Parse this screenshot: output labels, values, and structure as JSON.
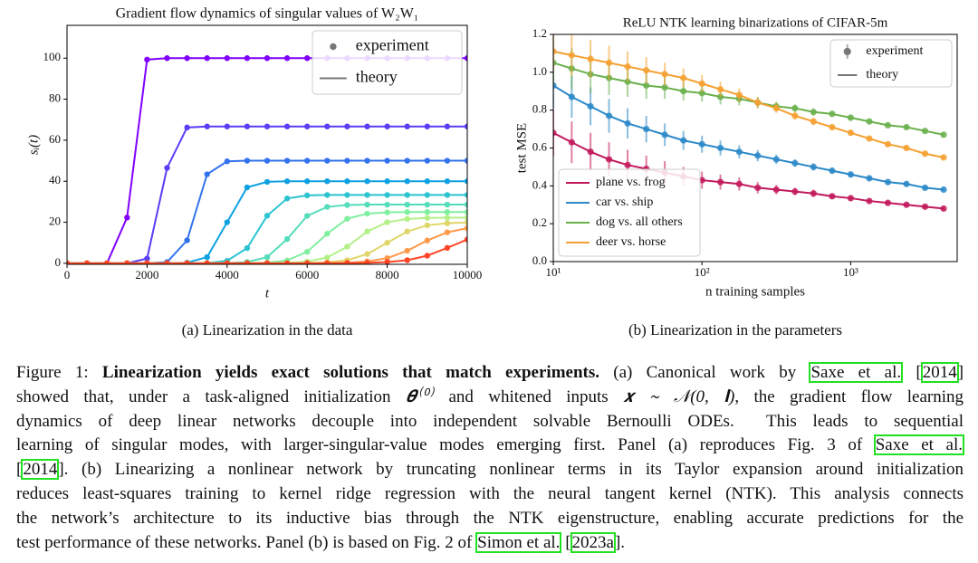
{
  "chart_data": [
    {
      "type": "line",
      "title": "Gradient flow dynamics of singular values of W₂W₁",
      "xlabel": "t",
      "ylabel": "sᵢ(t)",
      "xlim": [
        0,
        10000
      ],
      "ylim": [
        -0.5,
        116
      ],
      "xticks": [
        0,
        2000,
        4000,
        6000,
        8000,
        10000
      ],
      "yticks": [
        0,
        20,
        40,
        60,
        80,
        100
      ],
      "grid": false,
      "markers": true,
      "legend": {
        "loc": "upper right",
        "entries": [
          "experiment",
          "theory"
        ]
      },
      "x": [
        0,
        500,
        1000,
        1500,
        2000,
        2500,
        3000,
        3500,
        4000,
        4500,
        5000,
        5500,
        6000,
        6500,
        7000,
        7500,
        8000,
        8500,
        9000,
        9500,
        10000
      ],
      "series": [
        {
          "color": "#8000ff",
          "values": [
            0,
            0,
            0.1,
            22.3,
            99.3,
            100,
            100,
            100,
            100,
            100,
            100,
            100,
            100,
            100,
            100,
            100,
            100,
            100,
            100,
            100,
            100
          ]
        },
        {
          "color": "#5a3df7",
          "values": [
            0,
            0,
            0,
            0,
            2.3,
            46.5,
            66.2,
            66.7,
            66.7,
            66.7,
            66.7,
            66.7,
            66.7,
            66.7,
            66.7,
            66.7,
            66.7,
            66.7,
            66.7,
            66.7,
            66.7
          ]
        },
        {
          "color": "#3372ee",
          "values": [
            0,
            0,
            0,
            0,
            0,
            0.6,
            11.2,
            43.4,
            49.7,
            50,
            50,
            50,
            50,
            50,
            50,
            50,
            50,
            50,
            50,
            50,
            50
          ]
        },
        {
          "color": "#0ea1e2",
          "values": [
            0,
            0,
            0,
            0,
            0,
            0,
            0.3,
            3.0,
            20,
            37,
            39.7,
            40,
            40,
            40,
            40,
            40,
            40,
            40,
            40,
            40,
            40
          ]
        },
        {
          "color": "#2bc4d0",
          "values": [
            0,
            0,
            0,
            0,
            0,
            0,
            0,
            0.1,
            1.2,
            7.4,
            23.2,
            31.6,
            33.1,
            33.3,
            33.3,
            33.3,
            33.3,
            33.3,
            33.3,
            33.3,
            33.3
          ]
        },
        {
          "color": "#55ddba",
          "values": [
            0,
            0,
            0,
            0,
            0,
            0,
            0,
            0,
            0.1,
            0.6,
            3.0,
            11.8,
            23.1,
            27.5,
            28.4,
            28.6,
            28.6,
            28.6,
            28.6,
            28.6,
            28.6
          ]
        },
        {
          "color": "#80f0a0",
          "values": [
            0,
            0,
            0,
            0,
            0,
            0,
            0,
            0,
            0,
            0.1,
            0.3,
            1.4,
            5.6,
            14.4,
            21.7,
            24.2,
            24.8,
            25,
            25,
            25,
            25
          ]
        },
        {
          "color": "#b4f088",
          "values": [
            0,
            0,
            0,
            0,
            0,
            0,
            0,
            0,
            0,
            0,
            0,
            0.2,
            0.8,
            2.8,
            8.1,
            15.5,
            20.0,
            21.6,
            22.1,
            22.2,
            22.2
          ]
        },
        {
          "color": "#e0d66a",
          "values": [
            0,
            0,
            0,
            0,
            0,
            0,
            0,
            0,
            0,
            0,
            0,
            0,
            0.1,
            0.5,
            1.5,
            4.5,
            10,
            15.5,
            18.5,
            19.5,
            19.9
          ]
        },
        {
          "color": "#ff9a4a",
          "values": [
            0,
            0,
            0,
            0,
            0,
            0,
            0,
            0,
            0,
            0,
            0,
            0,
            0,
            0.1,
            0.3,
            0.9,
            2.5,
            6.1,
            11.1,
            15.1,
            17.1
          ]
        },
        {
          "color": "#ff4526",
          "values": [
            0,
            0,
            0,
            0,
            0,
            0,
            0,
            0,
            0,
            0,
            0,
            0,
            0,
            0,
            0.1,
            0.2,
            0.6,
            1.5,
            3.7,
            7.5,
            11.6
          ]
        }
      ]
    },
    {
      "type": "errorbar",
      "title": "ReLU NTK learning binarizations of CIFAR-5m",
      "xlabel": "n training samples",
      "ylabel": "test MSE",
      "xscale": "log",
      "xlim": [
        10,
        5200
      ],
      "ylim": [
        0,
        1.2
      ],
      "xticks": [
        {
          "value": 10,
          "label": "10¹"
        },
        {
          "value": 100,
          "label": "10²"
        },
        {
          "value": 1000,
          "label": "10³"
        }
      ],
      "yticks": [
        {
          "value": 0,
          "label": "0.0"
        },
        0.2,
        0.4,
        0.6,
        0.8,
        {
          "value": 1,
          "label": "1.0"
        },
        1.2
      ],
      "grid": false,
      "legend": {
        "loc": "upper right",
        "entries": [
          "experiment",
          "theory"
        ]
      },
      "series_legend": "lower left",
      "x": [
        10,
        13.3,
        17.8,
        23.7,
        31.6,
        42.2,
        56.2,
        75,
        100,
        133,
        178,
        237,
        316,
        422,
        562,
        750,
        1000,
        1334,
        1778,
        2371,
        3162,
        4217
      ],
      "series": [
        {
          "name": "plane vs. frog",
          "color": "#c2185b",
          "values": [
            0.68,
            0.63,
            0.58,
            0.54,
            0.51,
            0.49,
            0.47,
            0.45,
            0.43,
            0.42,
            0.41,
            0.39,
            0.38,
            0.37,
            0.36,
            0.345,
            0.335,
            0.32,
            0.31,
            0.3,
            0.29,
            0.28
          ],
          "errors": [
            0.12,
            0.11,
            0.1,
            0.09,
            0.08,
            0.07,
            0.06,
            0.05,
            0.045,
            0.04,
            0.035,
            0.03,
            0.025,
            0.02,
            0.02,
            0.015,
            0.015,
            0.01,
            0.01,
            0.01,
            0.01,
            0.01
          ]
        },
        {
          "name": "car vs. ship",
          "color": "#2a88c8",
          "values": [
            0.93,
            0.87,
            0.82,
            0.77,
            0.73,
            0.7,
            0.67,
            0.64,
            0.62,
            0.6,
            0.58,
            0.56,
            0.54,
            0.52,
            0.5,
            0.48,
            0.46,
            0.44,
            0.42,
            0.41,
            0.39,
            0.38
          ],
          "errors": [
            0.12,
            0.11,
            0.1,
            0.09,
            0.08,
            0.07,
            0.06,
            0.05,
            0.045,
            0.04,
            0.035,
            0.03,
            0.025,
            0.02,
            0.02,
            0.015,
            0.015,
            0.01,
            0.01,
            0.01,
            0.01,
            0.01
          ]
        },
        {
          "name": "dog vs. all others",
          "color": "#6ab04c",
          "values": [
            1.05,
            1.02,
            0.99,
            0.97,
            0.95,
            0.93,
            0.92,
            0.9,
            0.89,
            0.87,
            0.86,
            0.84,
            0.82,
            0.81,
            0.79,
            0.78,
            0.76,
            0.74,
            0.72,
            0.71,
            0.69,
            0.67
          ],
          "errors": [
            0.12,
            0.11,
            0.1,
            0.09,
            0.08,
            0.07,
            0.06,
            0.05,
            0.045,
            0.04,
            0.035,
            0.03,
            0.025,
            0.02,
            0.02,
            0.015,
            0.015,
            0.01,
            0.01,
            0.01,
            0.01,
            0.01
          ]
        },
        {
          "name": "deer vs. horse",
          "color": "#f5a030",
          "values": [
            1.11,
            1.09,
            1.07,
            1.05,
            1.03,
            1.01,
            0.99,
            0.97,
            0.94,
            0.91,
            0.88,
            0.84,
            0.81,
            0.77,
            0.74,
            0.71,
            0.68,
            0.65,
            0.62,
            0.6,
            0.57,
            0.55
          ],
          "errors": [
            0.12,
            0.11,
            0.1,
            0.09,
            0.08,
            0.07,
            0.06,
            0.05,
            0.045,
            0.04,
            0.035,
            0.03,
            0.025,
            0.02,
            0.02,
            0.015,
            0.015,
            0.01,
            0.01,
            0.01,
            0.01,
            0.01
          ]
        }
      ]
    }
  ],
  "subcaptions": [
    "(a) Linearization in the data",
    "(b) Linearization in the parameters"
  ],
  "caption": {
    "lines": [
      [
        {
          "text": "Figure 1: ",
          "style": "plain"
        },
        {
          "text": "Linearization yields exact solutions that match experiments.",
          "style": "bold"
        },
        {
          "text": " (a) Canonical work by ",
          "style": "plain"
        },
        {
          "text": "Saxe et al.",
          "style": "cite"
        },
        {
          "text": " [",
          "style": "plain"
        },
        {
          "text": "2014",
          "style": "cite"
        },
        {
          "text": "]",
          "style": "plain"
        }
      ],
      [
        {
          "text": "showed that, under a task-aligned initialization ",
          "style": "plain"
        },
        {
          "text": "𝜽⁽⁰⁾",
          "style": "math"
        },
        {
          "text": " and whitened inputs ",
          "style": "plain"
        },
        {
          "text": "𝒙 ∼ 𝒩(0, 𝐈)",
          "style": "math"
        },
        {
          "text": ", the gradient flow learning",
          "style": "plain"
        }
      ],
      [
        {
          "text": "dynamics of deep linear networks decouple into independent solvable Bernoulli ODEs.  This leads to sequential",
          "style": "plain"
        }
      ],
      [
        {
          "text": "learning of singular modes, with larger-singular-value modes emerging first. Panel (a) reproduces Fig. 3 of ",
          "style": "plain"
        },
        {
          "text": "Saxe et al.",
          "style": "cite"
        }
      ],
      [
        {
          "text": "[",
          "style": "plain"
        },
        {
          "text": "2014",
          "style": "cite"
        },
        {
          "text": "]. (b) Linearizing a nonlinear network by truncating nonlinear terms in its Taylor expansion around initialization",
          "style": "plain"
        }
      ],
      [
        {
          "text": "reduces least-squares training to kernel ridge regression with the neural tangent kernel (NTK). This analysis connects",
          "style": "plain"
        }
      ],
      [
        {
          "text": "the network’s architecture to its inductive bias through the NTK eigenstructure, enabling accurate predictions for the",
          "style": "plain"
        }
      ],
      [
        {
          "text": "test performance of these networks. Panel (b) is based on Fig. 2 of ",
          "style": "plain"
        },
        {
          "text": "Simon et al.",
          "style": "cite"
        },
        {
          "text": " [",
          "style": "plain"
        },
        {
          "text": "2023a",
          "style": "cite"
        },
        {
          "text": "].",
          "style": "plain"
        }
      ]
    ]
  }
}
